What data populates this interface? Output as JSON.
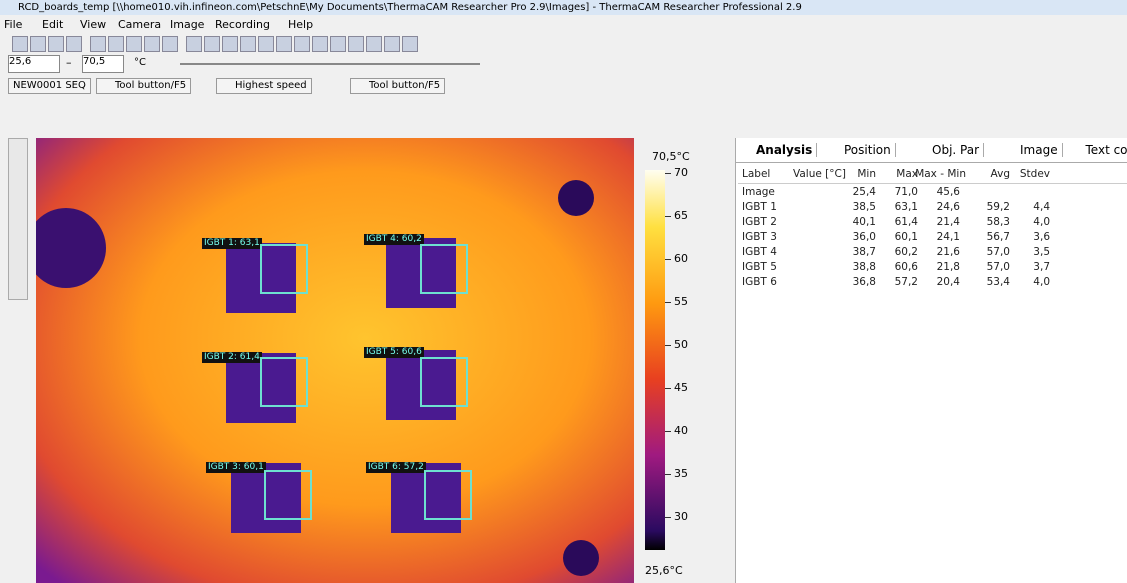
{
  "window": {
    "title": "RCD_boards_temp [\\\\home010.vih.infineon.com\\PetschnE\\My Documents\\ThermaCAM Researcher Pro 2.9\\Images] - ThermaCAM Researcher Professional 2.9"
  },
  "menu": [
    "File",
    "Edit",
    "View",
    "Camera",
    "Image",
    "Recording",
    "Help"
  ],
  "range": {
    "min": "25,6",
    "max": "70,5",
    "unit": "°C"
  },
  "toolbar": {
    "sequence": "NEW0001 SEQ",
    "tool1": "Tool button/F5",
    "speed": "Highest speed",
    "tool2": "Tool button/F5"
  },
  "image": {
    "labels": [
      "IGBT 1: 63,1",
      "IGBT 4: 60,2",
      "IGBT 2: 61,4",
      "IGBT 5: 60,6",
      "IGBT 3: 60,1",
      "IGBT 6: 57,2"
    ]
  },
  "scale": {
    "top": "70,5°C",
    "bottom": "25,6°C",
    "ticks": [
      "70",
      "65",
      "60",
      "55",
      "50",
      "45",
      "40",
      "35",
      "30"
    ]
  },
  "tabs": [
    "Analysis",
    "Position",
    "Obj. Par",
    "Image",
    "Text co"
  ],
  "table": {
    "columns": [
      "Label",
      "Value [°C]",
      "Min",
      "Max",
      "Max - Min",
      "Avg",
      "Stdev"
    ],
    "rows": [
      {
        "label": "Image",
        "min": "25,4",
        "max": "71,0",
        "range": "45,6"
      },
      {
        "label": "IGBT 1",
        "min": "38,5",
        "max": "63,1",
        "range": "24,6",
        "avg": "59,2",
        "stdev": "4,4"
      },
      {
        "label": "IGBT 2",
        "min": "40,1",
        "max": "61,4",
        "range": "21,4",
        "avg": "58,3",
        "stdev": "4,0"
      },
      {
        "label": "IGBT 3",
        "min": "36,0",
        "max": "60,1",
        "range": "24,1",
        "avg": "56,7",
        "stdev": "3,6"
      },
      {
        "label": "IGBT 4",
        "min": "38,7",
        "max": "60,2",
        "range": "21,6",
        "avg": "57,0",
        "stdev": "3,5"
      },
      {
        "label": "IGBT 5",
        "min": "38,8",
        "max": "60,6",
        "range": "21,8",
        "avg": "57,0",
        "stdev": "3,7"
      },
      {
        "label": "IGBT 6",
        "min": "36,8",
        "max": "57,2",
        "range": "20,4",
        "avg": "53,4",
        "stdev": "4,0"
      }
    ]
  }
}
